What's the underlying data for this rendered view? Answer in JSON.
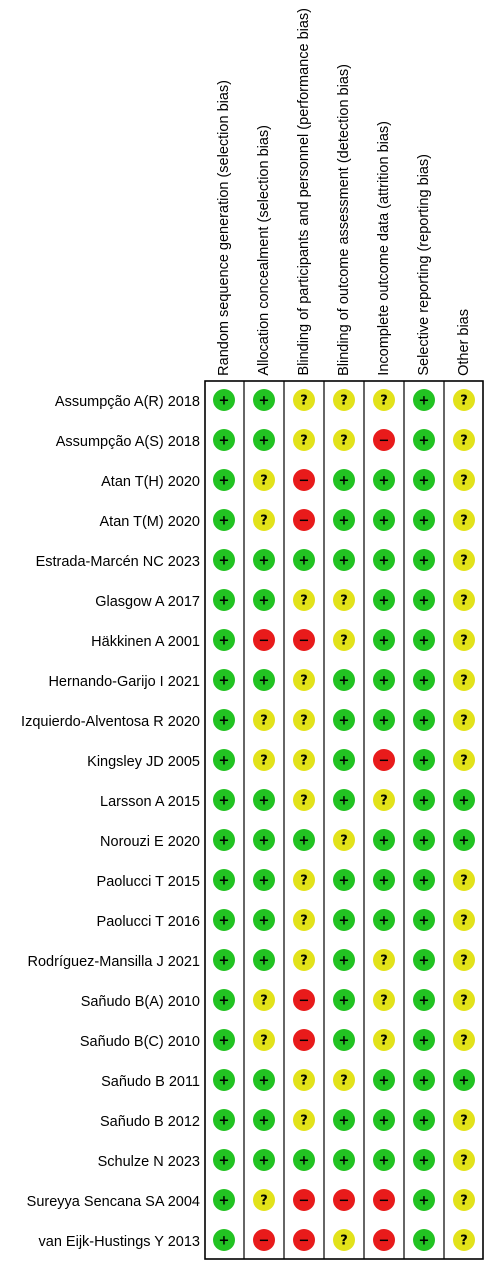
{
  "domains": [
    "Random sequence generation (selection bias)",
    "Allocation concealment (selection bias)",
    "Blinding of participants and personnel (performance bias)",
    "Blinding of outcome assessment (detection bias)",
    "Incomplete outcome data (attrition bias)",
    "Selective reporting (reporting bias)",
    "Other bias"
  ],
  "colors": {
    "low": "#22c322",
    "unclear": "#e2e21a",
    "high": "#e81b1b"
  },
  "symbols": {
    "low": "+",
    "unclear": "?",
    "high": "−"
  },
  "studies": [
    {
      "name": "Assumpção A(R) 2018",
      "ratings": [
        "low",
        "low",
        "unclear",
        "unclear",
        "unclear",
        "low",
        "unclear"
      ]
    },
    {
      "name": "Assumpção A(S) 2018",
      "ratings": [
        "low",
        "low",
        "unclear",
        "unclear",
        "high",
        "low",
        "unclear"
      ]
    },
    {
      "name": "Atan T(H) 2020",
      "ratings": [
        "low",
        "unclear",
        "high",
        "low",
        "low",
        "low",
        "unclear"
      ]
    },
    {
      "name": "Atan T(M) 2020",
      "ratings": [
        "low",
        "unclear",
        "high",
        "low",
        "low",
        "low",
        "unclear"
      ]
    },
    {
      "name": "Estrada-Marcén NC 2023",
      "ratings": [
        "low",
        "low",
        "low",
        "low",
        "low",
        "low",
        "unclear"
      ]
    },
    {
      "name": "Glasgow A 2017",
      "ratings": [
        "low",
        "low",
        "unclear",
        "unclear",
        "low",
        "low",
        "unclear"
      ]
    },
    {
      "name": "Häkkinen A 2001",
      "ratings": [
        "low",
        "high",
        "high",
        "unclear",
        "low",
        "low",
        "unclear"
      ]
    },
    {
      "name": "Hernando-Garijo I 2021",
      "ratings": [
        "low",
        "low",
        "unclear",
        "low",
        "low",
        "low",
        "unclear"
      ]
    },
    {
      "name": "Izquierdo-Alventosa R 2020",
      "ratings": [
        "low",
        "unclear",
        "unclear",
        "low",
        "low",
        "low",
        "unclear"
      ]
    },
    {
      "name": "Kingsley JD 2005",
      "ratings": [
        "low",
        "unclear",
        "unclear",
        "low",
        "high",
        "low",
        "unclear"
      ]
    },
    {
      "name": "Larsson A 2015",
      "ratings": [
        "low",
        "low",
        "unclear",
        "low",
        "unclear",
        "low",
        "low"
      ]
    },
    {
      "name": "Norouzi E 2020",
      "ratings": [
        "low",
        "low",
        "low",
        "unclear",
        "low",
        "low",
        "low"
      ]
    },
    {
      "name": "Paolucci T 2015",
      "ratings": [
        "low",
        "low",
        "unclear",
        "low",
        "low",
        "low",
        "unclear"
      ]
    },
    {
      "name": "Paolucci T 2016",
      "ratings": [
        "low",
        "low",
        "unclear",
        "low",
        "low",
        "low",
        "unclear"
      ]
    },
    {
      "name": "Rodríguez-Mansilla J 2021",
      "ratings": [
        "low",
        "low",
        "unclear",
        "low",
        "unclear",
        "low",
        "unclear"
      ]
    },
    {
      "name": "Sañudo B(A) 2010",
      "ratings": [
        "low",
        "unclear",
        "high",
        "low",
        "unclear",
        "low",
        "unclear"
      ]
    },
    {
      "name": "Sañudo B(C) 2010",
      "ratings": [
        "low",
        "unclear",
        "high",
        "low",
        "unclear",
        "low",
        "unclear"
      ]
    },
    {
      "name": "Sañudo B 2011",
      "ratings": [
        "low",
        "low",
        "unclear",
        "unclear",
        "low",
        "low",
        "low"
      ]
    },
    {
      "name": "Sañudo B 2012",
      "ratings": [
        "low",
        "low",
        "unclear",
        "low",
        "low",
        "low",
        "unclear"
      ]
    },
    {
      "name": "Schulze N 2023",
      "ratings": [
        "low",
        "low",
        "low",
        "low",
        "low",
        "low",
        "unclear"
      ]
    },
    {
      "name": "Sureyya Sencana SA 2004",
      "ratings": [
        "low",
        "unclear",
        "high",
        "high",
        "high",
        "low",
        "unclear"
      ]
    },
    {
      "name": "van Eijk-Hustings Y 2013",
      "ratings": [
        "low",
        "high",
        "high",
        "unclear",
        "high",
        "low",
        "unclear"
      ]
    }
  ]
}
